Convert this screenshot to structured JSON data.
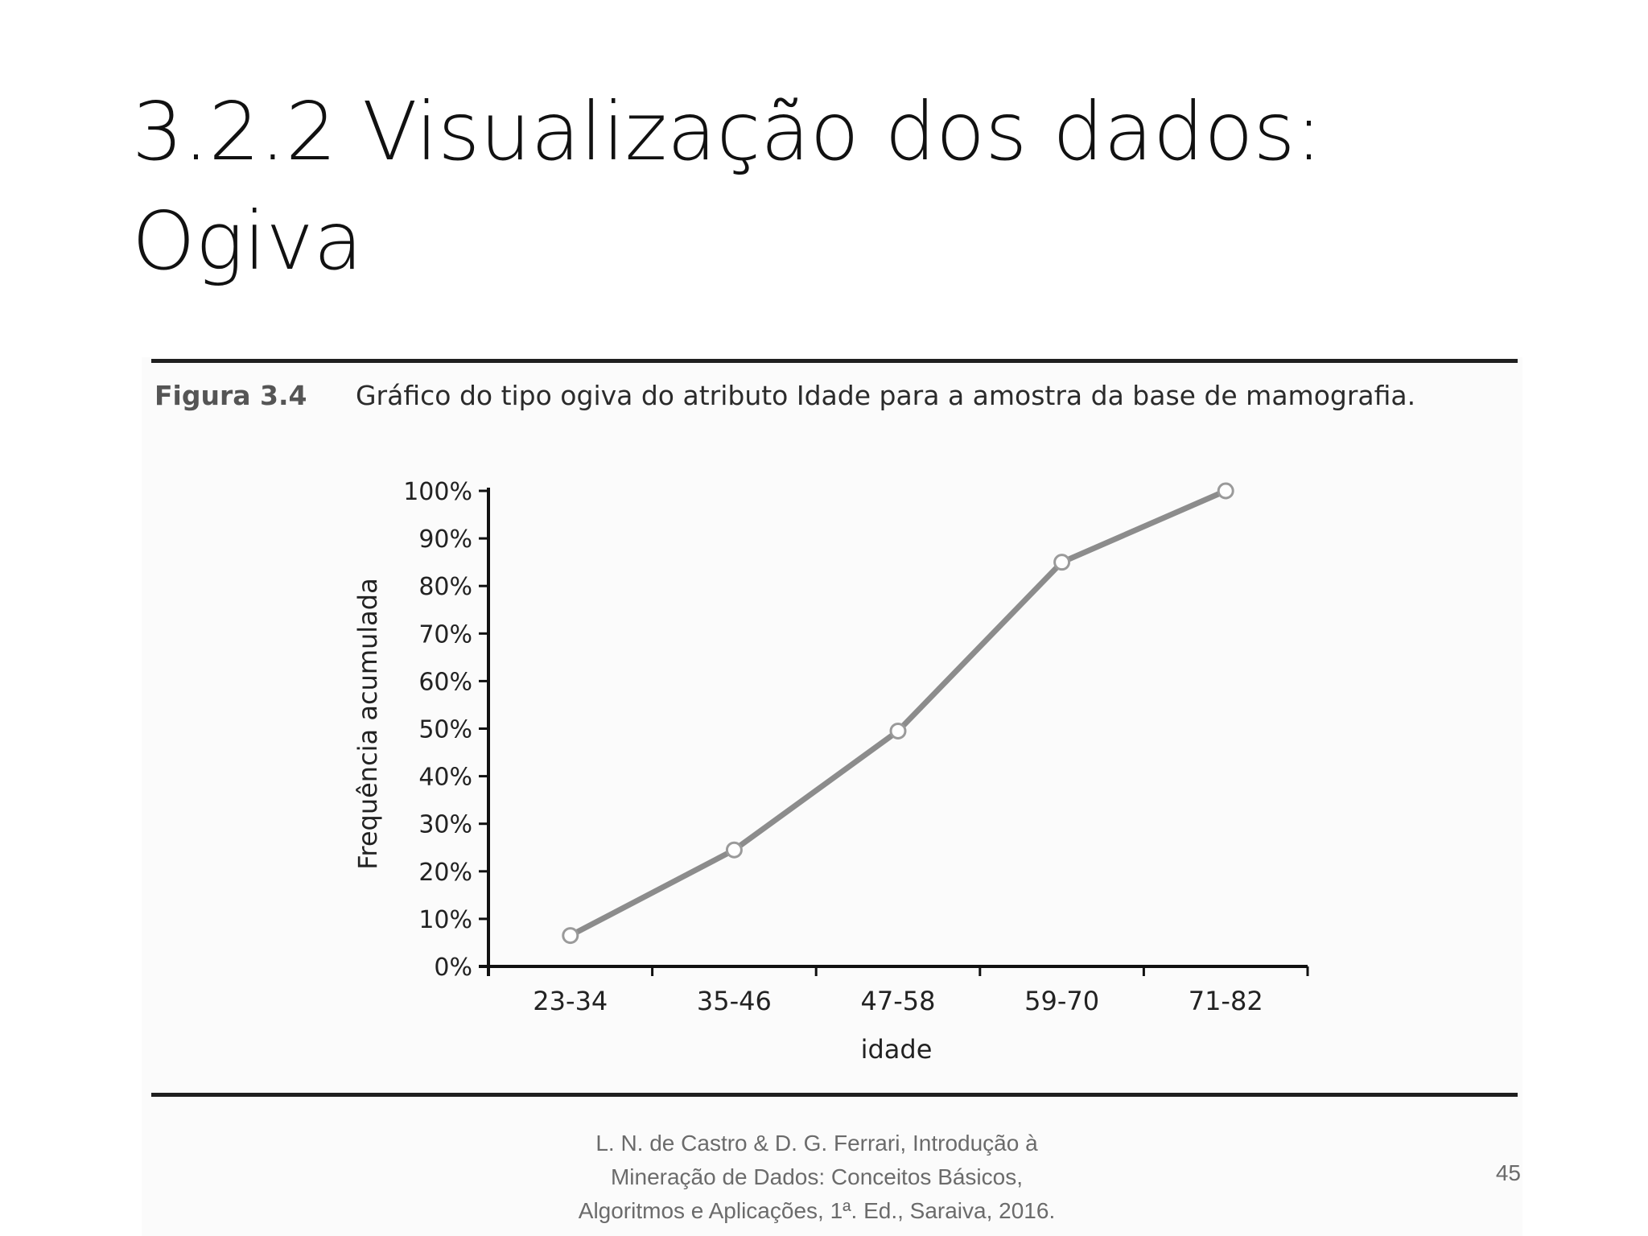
{
  "slide": {
    "title_line1": "3.2.2 Visualização dos dados:",
    "title_line2": "Ogiva",
    "figure_label": "Figura 3.4",
    "figure_caption": "Gráfico do tipo ogiva do atributo Idade para a amostra da base de mamografia.",
    "citation_line1": "L. N. de Castro & D. G. Ferrari, Introdução à",
    "citation_line2": "Mineração de Dados: Conceitos Básicos,",
    "citation_line3": "Algoritmos e Aplicações, 1ª. Ed., Saraiva, 2016.",
    "page_number": "45"
  },
  "chart_data": {
    "type": "line",
    "categories": [
      "23-34",
      "35-46",
      "47-58",
      "59-70",
      "71-82"
    ],
    "series": [
      {
        "values": [
          6.5,
          24.5,
          49.5,
          85,
          100
        ]
      }
    ],
    "xlabel": "idade",
    "ylabel": "Frequência acumulada",
    "ylim": [
      0,
      100
    ],
    "yticks": [
      "0%",
      "10%",
      "20%",
      "30%",
      "40%",
      "50%",
      "60%",
      "70%",
      "80%",
      "90%",
      "100%"
    ],
    "grid": false,
    "legend": "none",
    "line_color": "#8c8c8c",
    "marker_fill": "#ffffff",
    "marker_stroke": "#9a9a9a",
    "axis_color": "#111111"
  }
}
